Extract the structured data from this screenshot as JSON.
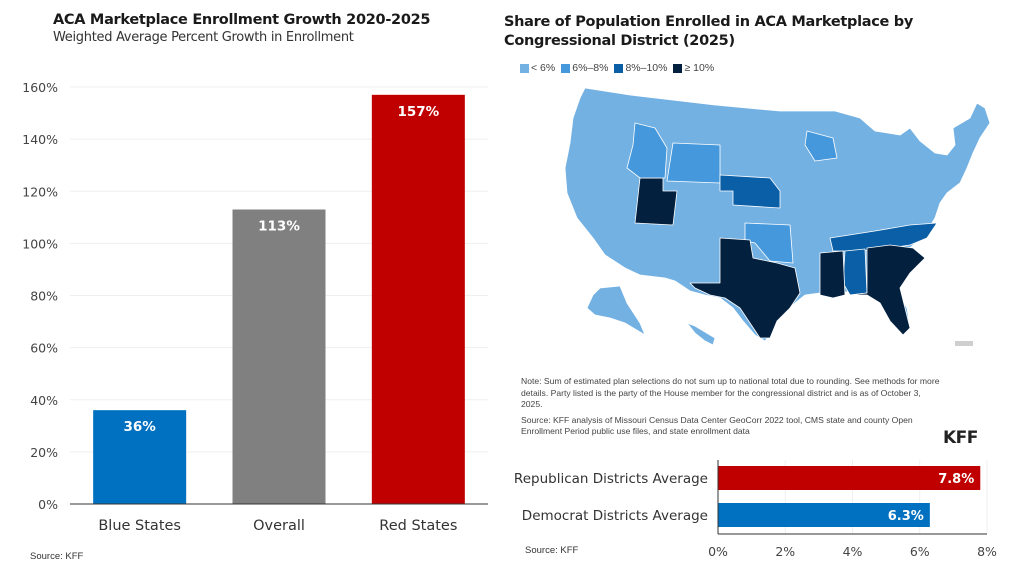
{
  "left_panel": {
    "title": "ACA Marketplace Enrollment Growth 2020-2025",
    "subtitle": "Weighted Average Percent Growth in Enrollment",
    "source": "Source: KFF"
  },
  "right_panel": {
    "title": "Share of Population Enrolled in ACA Marketplace by Congressional District (2025)",
    "legend": [
      {
        "label": "< 6%",
        "color": "#74b1e3"
      },
      {
        "label": "6%–8%",
        "color": "#4598dc"
      },
      {
        "label": "8%–10%",
        "color": "#0b5fa6"
      },
      {
        "label": "≥ 10%",
        "color": "#03213f"
      }
    ],
    "note": "Note: Sum of estimated plan selections do not sum up to national total due to rounding. See methods for more details. Party listed is the party of the House member for the congressional district and is as of October 3, 2025.",
    "map_source": "Source: KFF analysis of Missouri Census Data Center GeoCorr 2022 tool, CMS state and county Open Enrollment Period public use files, and state enrollment data",
    "logo": "KFF",
    "source": "Source: KFF"
  },
  "chart_data": [
    {
      "type": "bar",
      "title": "ACA Marketplace Enrollment Growth 2020-2025",
      "subtitle": "Weighted Average Percent Growth in Enrollment",
      "categories": [
        "Blue States",
        "Overall",
        "Red States"
      ],
      "values": [
        36,
        113,
        157
      ],
      "data_labels": [
        "36%",
        "113%",
        "157%"
      ],
      "colors": [
        "#0070c0",
        "#808080",
        "#c00000"
      ],
      "xlabel": "",
      "ylabel": "",
      "ylim": [
        0,
        160
      ],
      "yticks": [
        0,
        20,
        40,
        60,
        80,
        100,
        120,
        140,
        160
      ],
      "ytick_labels": [
        "0%",
        "20%",
        "40%",
        "60%",
        "80%",
        "100%",
        "120%",
        "140%",
        "160%"
      ],
      "grid": true
    },
    {
      "type": "bar",
      "orientation": "horizontal",
      "categories": [
        "Republican Districts Average",
        "Democrat Districts Average"
      ],
      "values": [
        7.8,
        6.3
      ],
      "data_labels": [
        "7.8%",
        "6.3%"
      ],
      "colors": [
        "#c00000",
        "#0070c0"
      ],
      "xlim": [
        0,
        8
      ],
      "xticks": [
        0,
        2,
        4,
        6,
        8
      ],
      "xtick_labels": [
        "0%",
        "2%",
        "4%",
        "6%",
        "8%"
      ],
      "grid": true
    }
  ]
}
